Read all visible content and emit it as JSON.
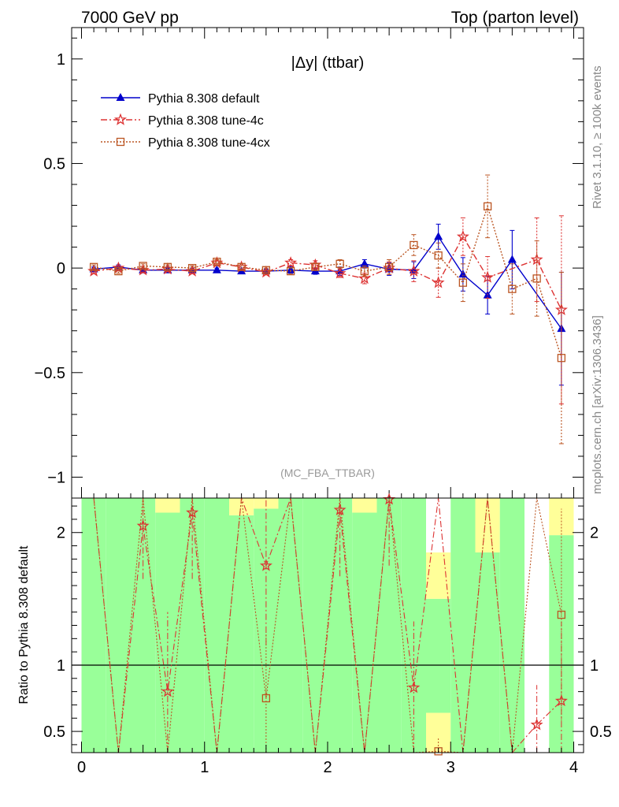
{
  "header": {
    "left": "7000 GeV pp",
    "right": "Top (parton level)"
  },
  "side": {
    "rivet": "Rivet 3.1.10, ≥ 100k events",
    "mcplots": "mcplots.cern.ch [arXiv:1306.3436]"
  },
  "colors": {
    "default": "#0000cc",
    "tune4c": "#dd3333",
    "tune4cx": "#bb5522",
    "band_green": "#99ff99",
    "band_yellow": "#ffff99"
  },
  "chart_data": [
    {
      "type": "line",
      "title": "|Δy| (ttbar)",
      "watermark": "(MC_FBA_TTBAR)",
      "xlabel": "",
      "ylabel": "",
      "xlim": [
        -0.08,
        4.08
      ],
      "ylim": [
        -1.1,
        1.15
      ],
      "yticks": [
        -1,
        -0.5,
        0,
        0.5,
        1
      ],
      "ytick_labels": [
        "−1",
        "−0.5",
        "0",
        "0.5",
        "1"
      ],
      "legend_position": "top-left",
      "x": [
        0.1,
        0.3,
        0.5,
        0.7,
        0.9,
        1.1,
        1.3,
        1.5,
        1.7,
        1.9,
        2.1,
        2.3,
        2.5,
        2.7,
        2.9,
        3.1,
        3.3,
        3.5,
        3.7,
        3.9
      ],
      "series": [
        {
          "name": "Pythia 8.308 default",
          "marker": "triangle",
          "values": [
            -0.005,
            0.005,
            -0.01,
            -0.01,
            -0.01,
            -0.01,
            -0.015,
            -0.015,
            -0.01,
            -0.015,
            -0.015,
            0.02,
            -0.005,
            -0.01,
            0.15,
            -0.03,
            -0.13,
            0.04,
            null,
            -0.29
          ],
          "errors": [
            0.01,
            0.01,
            0.01,
            0.01,
            0.01,
            0.01,
            0.01,
            0.01,
            0.015,
            0.015,
            0.02,
            0.02,
            0.03,
            0.04,
            0.06,
            0.08,
            0.09,
            0.14,
            null,
            0.27
          ]
        },
        {
          "name": "Pythia 8.308 tune-4c",
          "marker": "star",
          "values": [
            -0.015,
            0.0,
            -0.01,
            -0.005,
            -0.015,
            0.025,
            0.005,
            -0.02,
            0.025,
            0.015,
            -0.025,
            -0.05,
            0.0,
            -0.015,
            -0.07,
            0.15,
            -0.045,
            null,
            0.04,
            -0.2
          ],
          "errors": [
            0.01,
            0.01,
            0.01,
            0.01,
            0.01,
            0.01,
            0.01,
            0.01,
            0.015,
            0.02,
            0.02,
            0.025,
            0.03,
            0.05,
            0.07,
            0.09,
            0.1,
            null,
            0.2,
            0.45
          ]
        },
        {
          "name": "Pythia 8.308 tune-4cx",
          "marker": "square",
          "values": [
            0.005,
            -0.015,
            0.01,
            0.005,
            0.0,
            0.03,
            0.005,
            -0.01,
            -0.015,
            0.005,
            0.02,
            -0.015,
            0.005,
            0.11,
            0.06,
            -0.07,
            0.295,
            -0.1,
            -0.05,
            -0.43
          ],
          "errors": [
            0.01,
            0.01,
            0.01,
            0.01,
            0.01,
            0.01,
            0.01,
            0.01,
            0.015,
            0.015,
            0.02,
            0.025,
            0.035,
            0.05,
            0.06,
            0.09,
            0.15,
            0.12,
            0.18,
            0.41
          ]
        }
      ]
    },
    {
      "type": "line",
      "title": "",
      "xlabel": "",
      "ylabel": "Ratio to Pythia 8.308 default",
      "xlim": [
        -0.08,
        4.08
      ],
      "ylim": [
        0.34,
        2.26
      ],
      "xticks": [
        0,
        1,
        2,
        3,
        4
      ],
      "yticks": [
        0.5,
        1,
        2
      ],
      "reference_line": 1,
      "x": [
        0.1,
        0.3,
        0.5,
        0.7,
        0.9,
        1.1,
        1.3,
        1.5,
        1.7,
        1.9,
        2.1,
        2.3,
        2.5,
        2.7,
        2.9,
        3.1,
        3.3,
        3.5,
        3.7,
        3.9
      ],
      "bands": [
        {
          "x0": 0.0,
          "x1": 0.2,
          "green": [
            0.3,
            2.3
          ],
          "yellow": null
        },
        {
          "x0": 0.2,
          "x1": 0.4,
          "green": [
            0.3,
            2.3
          ],
          "yellow": null
        },
        {
          "x0": 0.4,
          "x1": 0.6,
          "green": [
            0.3,
            2.3
          ],
          "yellow": null
        },
        {
          "x0": 0.6,
          "x1": 0.8,
          "green": [
            0.3,
            2.15
          ],
          "yellow": [
            2.15,
            2.3
          ]
        },
        {
          "x0": 0.8,
          "x1": 1.0,
          "green": [
            0.3,
            2.3
          ],
          "yellow": null
        },
        {
          "x0": 1.0,
          "x1": 1.2,
          "green": [
            0.3,
            2.3
          ],
          "yellow": null
        },
        {
          "x0": 1.2,
          "x1": 1.4,
          "green": [
            0.3,
            2.13
          ],
          "yellow": [
            2.13,
            2.3
          ]
        },
        {
          "x0": 1.4,
          "x1": 1.6,
          "green": [
            0.3,
            2.18
          ],
          "yellow": [
            2.18,
            2.3
          ]
        },
        {
          "x0": 1.6,
          "x1": 1.8,
          "green": [
            0.3,
            2.3
          ],
          "yellow": null
        },
        {
          "x0": 1.8,
          "x1": 2.0,
          "green": [
            0.3,
            2.3
          ],
          "yellow": null
        },
        {
          "x0": 2.0,
          "x1": 2.2,
          "green": [
            0.3,
            2.3
          ],
          "yellow": null
        },
        {
          "x0": 2.2,
          "x1": 2.4,
          "green": [
            0.3,
            2.15
          ],
          "yellow": [
            2.15,
            2.3
          ]
        },
        {
          "x0": 2.4,
          "x1": 2.6,
          "green": [
            0.3,
            2.3
          ],
          "yellow": null
        },
        {
          "x0": 2.6,
          "x1": 2.8,
          "green": [
            0.3,
            2.3
          ],
          "yellow": null
        },
        {
          "x0": 2.8,
          "x1": 3.0,
          "green": [
            0.64,
            1.5
          ],
          "yellow": [
            [
              0.3,
              0.64
            ],
            [
              1.5,
              1.85
            ]
          ]
        },
        {
          "x0": 3.0,
          "x1": 3.2,
          "green": [
            0.3,
            2.3
          ],
          "yellow": null
        },
        {
          "x0": 3.2,
          "x1": 3.4,
          "green": [
            0.3,
            1.85
          ],
          "yellow": [
            1.85,
            2.3
          ]
        },
        {
          "x0": 3.4,
          "x1": 3.6,
          "green": [
            0.3,
            2.3
          ],
          "yellow": null
        },
        {
          "x0": 3.6,
          "x1": 3.8,
          "green": null,
          "yellow": null
        },
        {
          "x0": 3.8,
          "x1": 4.0,
          "green": [
            0.3,
            1.98
          ],
          "yellow": [
            1.98,
            2.3
          ]
        }
      ],
      "series": [
        {
          "name": "Pythia 8.308 tune-4c",
          "values": [
            null,
            null,
            2.05,
            0.8,
            2.15,
            null,
            null,
            1.75,
            null,
            null,
            2.17,
            null,
            2.25,
            0.83,
            null,
            null,
            null,
            null,
            0.55,
            0.73
          ],
          "errors": [
            null,
            null,
            0.4,
            0.6,
            0.5,
            null,
            null,
            0.6,
            null,
            null,
            0.5,
            null,
            0.5,
            0.5,
            null,
            null,
            null,
            null,
            0.3,
            0.6
          ]
        },
        {
          "name": "Pythia 8.308 tune-4cx",
          "values": [
            null,
            null,
            null,
            null,
            null,
            null,
            null,
            0.75,
            null,
            null,
            null,
            null,
            null,
            null,
            0.35,
            null,
            null,
            null,
            null,
            1.38
          ],
          "errors": [
            null,
            null,
            null,
            null,
            null,
            null,
            null,
            0.5,
            null,
            null,
            null,
            null,
            null,
            null,
            0.1,
            null,
            null,
            null,
            null,
            0.8
          ]
        }
      ]
    }
  ]
}
